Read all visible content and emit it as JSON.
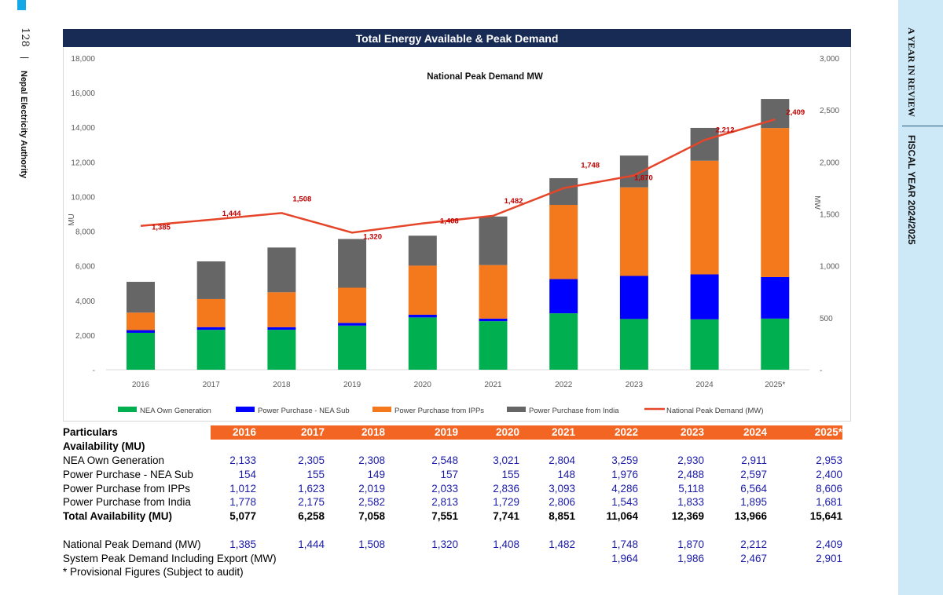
{
  "page": {
    "number": "128",
    "separator": "|",
    "organization": "Nepal Electricity Authority",
    "side_title": "A YEAR IN REVIEW",
    "side_subtitle": "FISCAL YEAR  2024/2025"
  },
  "chart_data": {
    "type": "bar",
    "title": "Total Energy Available & Peak Demand",
    "subtitle": "National Peak Demand MW",
    "ylabel": "MU",
    "y2label": "MW",
    "ylim": [
      0,
      18000
    ],
    "y2lim": [
      0,
      3000
    ],
    "yticks": [
      "-",
      "2,000",
      "4,000",
      "6,000",
      "8,000",
      "10,000",
      "12,000",
      "14,000",
      "16,000",
      "18,000"
    ],
    "y2ticks": [
      "-",
      "500",
      "1,000",
      "1,500",
      "2,000",
      "2,500",
      "3,000"
    ],
    "categories": [
      "2016",
      "2017",
      "2018",
      "2019",
      "2020",
      "2021",
      "2022",
      "2023",
      "2024",
      "2025*"
    ],
    "stacked": true,
    "series": [
      {
        "name": "NEA Own Generation",
        "color": "#00b050",
        "values": [
          2133,
          2305,
          2308,
          2548,
          3021,
          2804,
          3259,
          2930,
          2911,
          2953
        ]
      },
      {
        "name": "Power Purchase - NEA Sub",
        "color": "#0000ff",
        "values": [
          154,
          155,
          149,
          157,
          155,
          148,
          1976,
          2488,
          2597,
          2400
        ]
      },
      {
        "name": "Power Purchase from IPPs",
        "color": "#f4781c",
        "values": [
          1012,
          1623,
          2019,
          2033,
          2836,
          3093,
          4286,
          5118,
          6564,
          8606
        ]
      },
      {
        "name": "Power Purchase from India",
        "color": "#666666",
        "values": [
          1778,
          2175,
          2582,
          2813,
          1729,
          2806,
          1543,
          1833,
          1895,
          1681
        ]
      }
    ],
    "line": {
      "name": "National Peak Demand (MW)",
      "color": "#e5462a",
      "axis": "right",
      "values": [
        1385,
        1444,
        1508,
        1320,
        1408,
        1482,
        1748,
        1870,
        2212,
        2409
      ],
      "labels": [
        "1,385",
        "1,444",
        "1,508",
        "1,320",
        "1,408",
        "1,482",
        "1,748",
        "1,870",
        "2,212",
        "2,409"
      ]
    },
    "legend_position": "bottom"
  },
  "table": {
    "header": [
      "Particulars",
      "2016",
      "2017",
      "2018",
      "2019",
      "2020",
      "2021",
      "2022",
      "2023",
      "2024",
      "2025*"
    ],
    "section": "Availability (MU)",
    "rows": [
      {
        "label": "NEA Own Generation",
        "values": [
          "2,133",
          "2,305",
          "2,308",
          "2,548",
          "3,021",
          "2,804",
          "3,259",
          "2,930",
          "2,911",
          "2,953"
        ]
      },
      {
        "label": "Power Purchase - NEA Sub",
        "values": [
          "154",
          "155",
          "149",
          "157",
          "155",
          "148",
          "1,976",
          "2,488",
          "2,597",
          "2,400"
        ]
      },
      {
        "label": "Power Purchase from IPPs",
        "values": [
          "1,012",
          "1,623",
          "2,019",
          "2,033",
          "2,836",
          "3,093",
          "4,286",
          "5,118",
          "6,564",
          "8,606"
        ]
      },
      {
        "label": "Power Purchase from India",
        "values": [
          "1,778",
          "2,175",
          "2,582",
          "2,813",
          "1,729",
          "2,806",
          "1,543",
          "1,833",
          "1,895",
          "1,681"
        ]
      }
    ],
    "total": {
      "label": "Total Availability (MU)",
      "values": [
        "5,077",
        "6,258",
        "7,058",
        "7,551",
        "7,741",
        "8,851",
        "11,064",
        "12,369",
        "13,966",
        "15,641"
      ]
    },
    "peak": {
      "label": "National Peak Demand (MW)",
      "values": [
        "1,385",
        "1,444",
        "1,508",
        "1,320",
        "1,408",
        "1,482",
        "1,748",
        "1,870",
        "2,212",
        "2,409"
      ]
    },
    "system_peak": {
      "label": "System Peak Demand  Including Export (MW)",
      "values": [
        "",
        "",
        "",
        "",
        "",
        "",
        "1,964",
        "1,986",
        "2,467",
        "2,901"
      ]
    },
    "note": "* Provisional Figures (Subject to audit)"
  }
}
